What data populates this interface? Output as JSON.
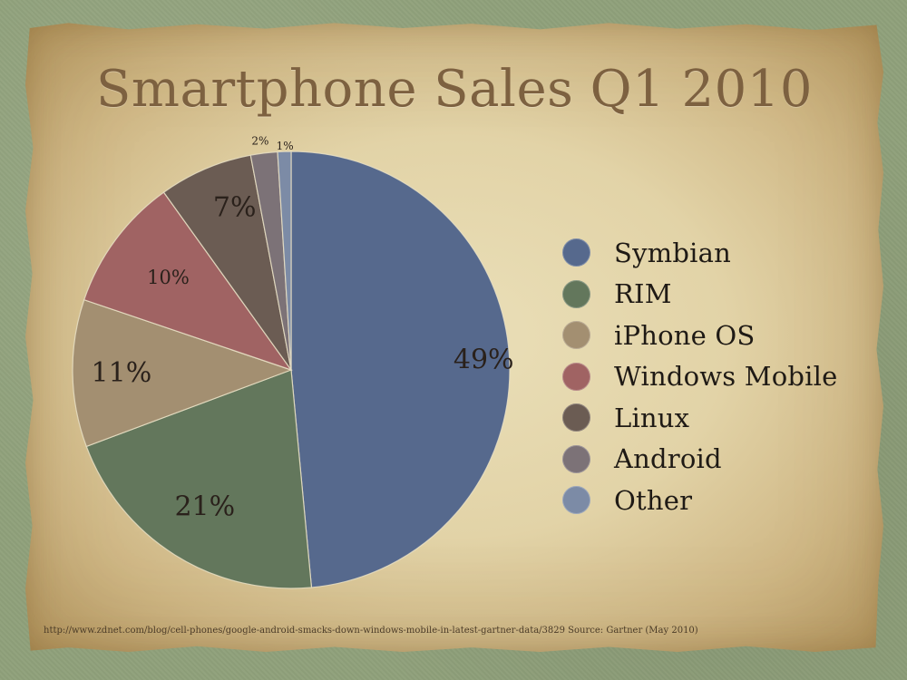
{
  "slide": {
    "title": "Smartphone Sales Q1 2010",
    "footer": "http://www.zdnet.com/blog/cell-phones/google-android-smacks-down-windows-mobile-in-latest-gartner-data/3829 Source: Gartner (May 2010)"
  },
  "chart_data": {
    "type": "pie",
    "title": "Smartphone Sales Q1 2010",
    "categories": [
      "Symbian",
      "RIM",
      "iPhone OS",
      "Windows Mobile",
      "Linux",
      "Android",
      "Other"
    ],
    "values": [
      49,
      21,
      11,
      10,
      7,
      2,
      1
    ],
    "labels": [
      "49%",
      "21%",
      "11%",
      "10%",
      "7%",
      "2%",
      "1%"
    ],
    "colors": [
      "#56698d",
      "#63775c",
      "#a38f71",
      "#a06363",
      "#6b5c53",
      "#7c7277",
      "#7c8ba6"
    ],
    "legend_position": "right"
  }
}
